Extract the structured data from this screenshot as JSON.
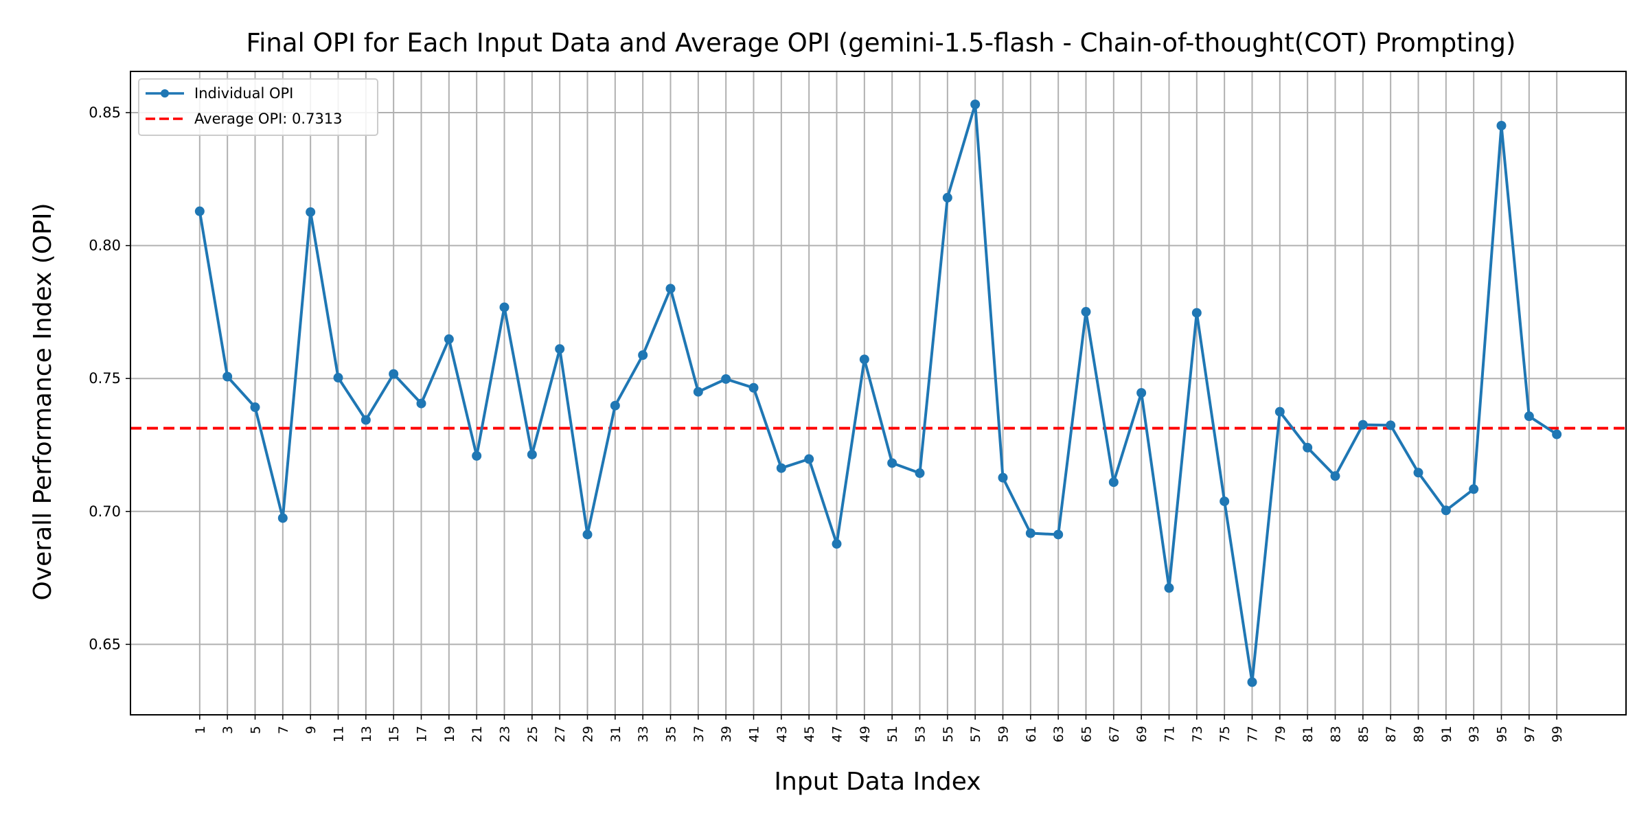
{
  "chart_data": {
    "type": "line",
    "title": "Final OPI for Each Input Data and Average OPI (gemini-1.5-flash - Chain-of-thought(COT) Prompting)",
    "xlabel": "Input Data Index",
    "ylabel": "Overall Performance Index (OPI)",
    "x": [
      1,
      3,
      5,
      7,
      9,
      11,
      13,
      15,
      17,
      19,
      21,
      23,
      25,
      27,
      29,
      31,
      33,
      35,
      37,
      39,
      41,
      43,
      45,
      47,
      49,
      51,
      53,
      55,
      57,
      59,
      61,
      63,
      65,
      67,
      69,
      71,
      73,
      75,
      77,
      79,
      81,
      83,
      85,
      87,
      89,
      91,
      93,
      95,
      97,
      99
    ],
    "xticks": [
      "1",
      "3",
      "5",
      "7",
      "9",
      "11",
      "13",
      "15",
      "17",
      "19",
      "21",
      "23",
      "25",
      "27",
      "29",
      "31",
      "33",
      "35",
      "37",
      "39",
      "41",
      "43",
      "45",
      "47",
      "49",
      "51",
      "53",
      "55",
      "57",
      "59",
      "61",
      "63",
      "65",
      "67",
      "69",
      "71",
      "73",
      "75",
      "77",
      "79",
      "81",
      "83",
      "85",
      "87",
      "89",
      "91",
      "93",
      "95",
      "97",
      "99"
    ],
    "yticks": [
      "0.65",
      "0.70",
      "0.75",
      "0.80",
      "0.85"
    ],
    "xlim": [
      -4,
      104
    ],
    "ylim": [
      0.6235,
      0.8655
    ],
    "grid": true,
    "legend_position": "top-left",
    "series": [
      {
        "name": "Individual OPI",
        "color": "#1f77b4",
        "style": "line-with-markers",
        "values": [
          0.8129,
          0.7507,
          0.7392,
          0.6975,
          0.8126,
          0.7503,
          0.7344,
          0.7517,
          0.7406,
          0.7648,
          0.7209,
          0.7768,
          0.7214,
          0.7611,
          0.6913,
          0.7398,
          0.7588,
          0.7838,
          0.745,
          0.7498,
          0.7465,
          0.7163,
          0.7197,
          0.6878,
          0.7572,
          0.7182,
          0.7144,
          0.818,
          0.8531,
          0.7127,
          0.6918,
          0.6913,
          0.7751,
          0.711,
          0.7446,
          0.6712,
          0.7747,
          0.7038,
          0.6358,
          0.7375,
          0.724,
          0.7133,
          0.7326,
          0.7324,
          0.7146,
          0.7004,
          0.7084,
          0.8451,
          0.7358,
          0.729
        ]
      },
      {
        "name": "Average OPI: 0.7313",
        "color": "#ff0000",
        "style": "dashed-horizontal",
        "value": 0.7313
      }
    ]
  }
}
